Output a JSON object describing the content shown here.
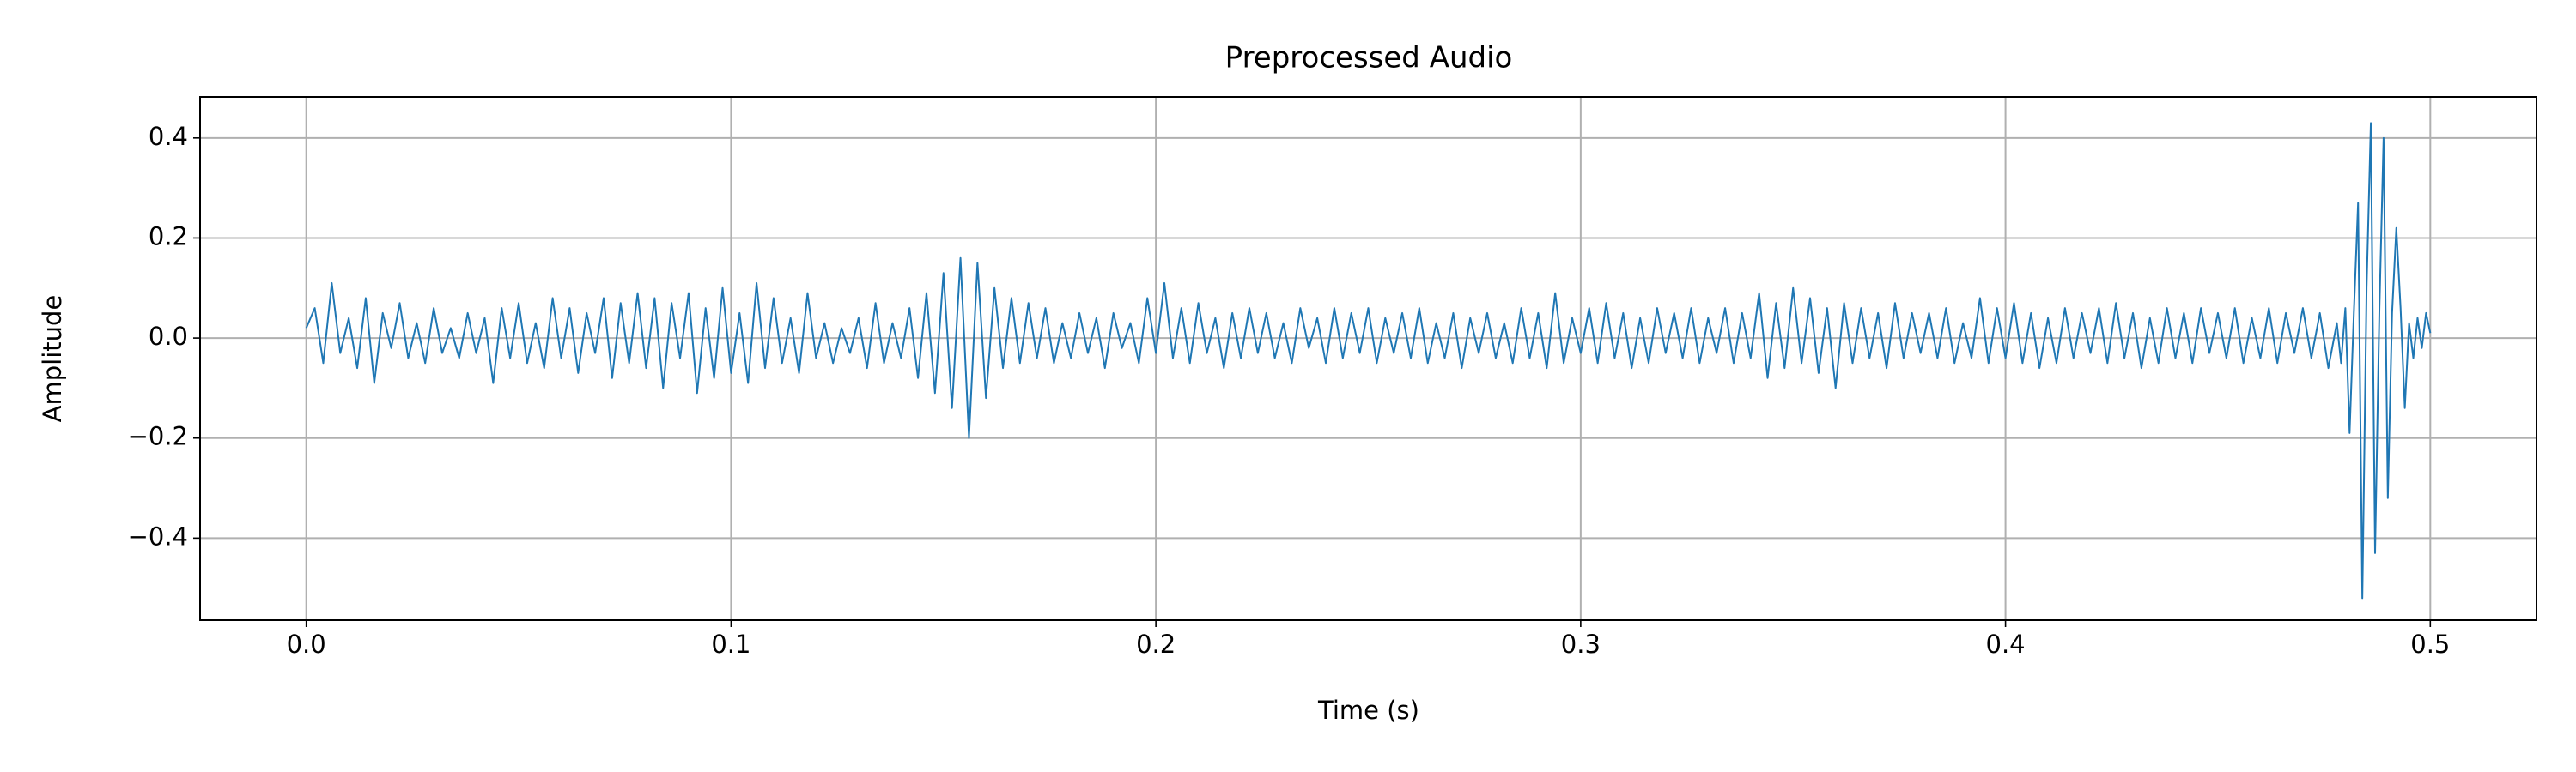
{
  "chart_data": {
    "type": "line",
    "title": "Preprocessed Audio",
    "x_label": "Time (s)",
    "y_label": "Amplitude",
    "color": "#1f77b4",
    "grid": true,
    "xlim": [
      -0.025,
      0.525
    ],
    "ylim": [
      -0.564,
      0.482
    ],
    "xticks": [
      {
        "value": 0,
        "label": "0.0"
      },
      0.1,
      0.2,
      0.3,
      0.4,
      0.5
    ],
    "yticks": [
      {
        "value": -0.4,
        "label": "−0.4"
      },
      {
        "value": -0.2,
        "label": "−0.2"
      },
      {
        "value": 0,
        "label": "0.0"
      },
      0.2,
      0.4
    ],
    "x": [
      0,
      0.002,
      0.004,
      0.006,
      0.008,
      0.01,
      0.012,
      0.014,
      0.016,
      0.018,
      0.02,
      0.022,
      0.024,
      0.026,
      0.028,
      0.03,
      0.032,
      0.034,
      0.036,
      0.038,
      0.04,
      0.042,
      0.044,
      0.046,
      0.048,
      0.05,
      0.052,
      0.054,
      0.056,
      0.058,
      0.06,
      0.062,
      0.064,
      0.066,
      0.068,
      0.07,
      0.072,
      0.074,
      0.076,
      0.078,
      0.08,
      0.082,
      0.084,
      0.086,
      0.088,
      0.09,
      0.092,
      0.094,
      0.096,
      0.098,
      0.1,
      0.102,
      0.104,
      0.106,
      0.108,
      0.11,
      0.112,
      0.114,
      0.116,
      0.118,
      0.12,
      0.122,
      0.124,
      0.126,
      0.128,
      0.13,
      0.132,
      0.134,
      0.136,
      0.138,
      0.14,
      0.142,
      0.144,
      0.146,
      0.148,
      0.15,
      0.152,
      0.154,
      0.156,
      0.158,
      0.16,
      0.162,
      0.164,
      0.166,
      0.168,
      0.17,
      0.172,
      0.174,
      0.176,
      0.178,
      0.18,
      0.182,
      0.184,
      0.186,
      0.188,
      0.19,
      0.192,
      0.194,
      0.196,
      0.198,
      0.2,
      0.202,
      0.204,
      0.206,
      0.208,
      0.21,
      0.212,
      0.214,
      0.216,
      0.218,
      0.22,
      0.222,
      0.224,
      0.226,
      0.228,
      0.23,
      0.232,
      0.234,
      0.236,
      0.238,
      0.24,
      0.242,
      0.244,
      0.246,
      0.248,
      0.25,
      0.252,
      0.254,
      0.256,
      0.258,
      0.26,
      0.262,
      0.264,
      0.266,
      0.268,
      0.27,
      0.272,
      0.274,
      0.276,
      0.278,
      0.28,
      0.282,
      0.284,
      0.286,
      0.288,
      0.29,
      0.292,
      0.294,
      0.296,
      0.298,
      0.3,
      0.302,
      0.304,
      0.306,
      0.308,
      0.31,
      0.312,
      0.314,
      0.316,
      0.318,
      0.32,
      0.322,
      0.324,
      0.326,
      0.328,
      0.33,
      0.332,
      0.334,
      0.336,
      0.338,
      0.34,
      0.342,
      0.344,
      0.346,
      0.348,
      0.35,
      0.352,
      0.354,
      0.356,
      0.358,
      0.36,
      0.362,
      0.364,
      0.366,
      0.368,
      0.37,
      0.372,
      0.374,
      0.376,
      0.378,
      0.38,
      0.382,
      0.384,
      0.386,
      0.388,
      0.39,
      0.392,
      0.394,
      0.396,
      0.398,
      0.4,
      0.402,
      0.404,
      0.406,
      0.408,
      0.41,
      0.412,
      0.414,
      0.416,
      0.418,
      0.42,
      0.422,
      0.424,
      0.426,
      0.428,
      0.43,
      0.432,
      0.434,
      0.436,
      0.438,
      0.44,
      0.442,
      0.444,
      0.446,
      0.448,
      0.45,
      0.452,
      0.454,
      0.456,
      0.458,
      0.46,
      0.462,
      0.464,
      0.466,
      0.468,
      0.47,
      0.472,
      0.474,
      0.476,
      0.478,
      0.479,
      0.48,
      0.481,
      0.482,
      0.483,
      0.484,
      0.485,
      0.486,
      0.487,
      0.488,
      0.489,
      0.49,
      0.491,
      0.492,
      0.493,
      0.494,
      0.495,
      0.496,
      0.497,
      0.498,
      0.499,
      0.5
    ],
    "values": [
      0.02,
      0.06,
      -0.05,
      0.11,
      -0.03,
      0.04,
      -0.06,
      0.08,
      -0.09,
      0.05,
      -0.02,
      0.07,
      -0.04,
      0.03,
      -0.05,
      0.06,
      -0.03,
      0.02,
      -0.04,
      0.05,
      -0.03,
      0.04,
      -0.09,
      0.06,
      -0.04,
      0.07,
      -0.05,
      0.03,
      -0.06,
      0.08,
      -0.04,
      0.06,
      -0.07,
      0.05,
      -0.03,
      0.08,
      -0.08,
      0.07,
      -0.05,
      0.09,
      -0.06,
      0.08,
      -0.1,
      0.07,
      -0.04,
      0.09,
      -0.11,
      0.06,
      -0.08,
      0.1,
      -0.07,
      0.05,
      -0.09,
      0.11,
      -0.06,
      0.08,
      -0.05,
      0.04,
      -0.07,
      0.09,
      -0.04,
      0.03,
      -0.05,
      0.02,
      -0.03,
      0.04,
      -0.06,
      0.07,
      -0.05,
      0.03,
      -0.04,
      0.06,
      -0.08,
      0.09,
      -0.11,
      0.13,
      -0.14,
      0.16,
      -0.2,
      0.15,
      -0.12,
      0.1,
      -0.06,
      0.08,
      -0.05,
      0.07,
      -0.04,
      0.06,
      -0.05,
      0.03,
      -0.04,
      0.05,
      -0.03,
      0.04,
      -0.06,
      0.05,
      -0.02,
      0.03,
      -0.05,
      0.08,
      -0.03,
      0.11,
      -0.04,
      0.06,
      -0.05,
      0.07,
      -0.03,
      0.04,
      -0.06,
      0.05,
      -0.04,
      0.06,
      -0.03,
      0.05,
      -0.04,
      0.03,
      -0.05,
      0.06,
      -0.02,
      0.04,
      -0.05,
      0.06,
      -0.04,
      0.05,
      -0.03,
      0.06,
      -0.05,
      0.04,
      -0.03,
      0.05,
      -0.04,
      0.06,
      -0.05,
      0.03,
      -0.04,
      0.05,
      -0.06,
      0.04,
      -0.03,
      0.05,
      -0.04,
      0.03,
      -0.05,
      0.06,
      -0.04,
      0.05,
      -0.06,
      0.09,
      -0.05,
      0.04,
      -0.03,
      0.06,
      -0.05,
      0.07,
      -0.04,
      0.05,
      -0.06,
      0.04,
      -0.05,
      0.06,
      -0.03,
      0.05,
      -0.04,
      0.06,
      -0.05,
      0.04,
      -0.03,
      0.06,
      -0.05,
      0.05,
      -0.04,
      0.09,
      -0.08,
      0.07,
      -0.06,
      0.1,
      -0.05,
      0.08,
      -0.07,
      0.06,
      -0.1,
      0.07,
      -0.05,
      0.06,
      -0.04,
      0.05,
      -0.06,
      0.07,
      -0.04,
      0.05,
      -0.03,
      0.05,
      -0.04,
      0.06,
      -0.05,
      0.03,
      -0.04,
      0.08,
      -0.05,
      0.06,
      -0.04,
      0.07,
      -0.05,
      0.05,
      -0.06,
      0.04,
      -0.05,
      0.06,
      -0.04,
      0.05,
      -0.03,
      0.06,
      -0.05,
      0.07,
      -0.04,
      0.05,
      -0.06,
      0.04,
      -0.05,
      0.06,
      -0.04,
      0.05,
      -0.05,
      0.06,
      -0.03,
      0.05,
      -0.04,
      0.06,
      -0.05,
      0.04,
      -0.04,
      0.06,
      -0.05,
      0.05,
      -0.03,
      0.06,
      -0.04,
      0.05,
      -0.06,
      0.03,
      -0.05,
      0.06,
      -0.19,
      0.05,
      0.27,
      -0.52,
      0.1,
      0.43,
      -0.43,
      0.05,
      0.4,
      -0.32,
      0.05,
      0.22,
      0.06,
      -0.14,
      0.03,
      -0.04,
      0.04,
      -0.02,
      0.05,
      0.01
    ]
  }
}
